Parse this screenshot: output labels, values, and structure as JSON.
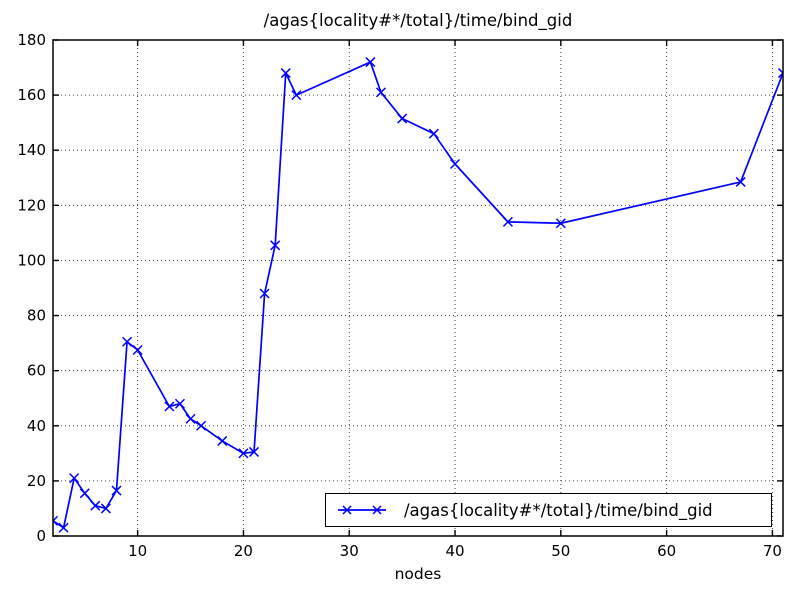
{
  "chart_data": {
    "type": "line",
    "title": "/agas{locality#*/total}/time/bind_gid",
    "xlabel": "nodes",
    "ylabel": "",
    "xlim": [
      2,
      71
    ],
    "ylim": [
      0,
      180
    ],
    "xticks": [
      10,
      20,
      30,
      40,
      50,
      60,
      70
    ],
    "yticks": [
      0,
      20,
      40,
      60,
      80,
      100,
      120,
      140,
      160,
      180
    ],
    "grid": true,
    "grid_style": "dotted",
    "legend_position": "lower right",
    "series": [
      {
        "name": "/agas{locality#*/total}/time/bind_gid",
        "color": "#0000ff",
        "marker": "x",
        "x": [
          2,
          3,
          4,
          5,
          6,
          7,
          8,
          9,
          10,
          13,
          14,
          15,
          16,
          18,
          20,
          21,
          22,
          23,
          24,
          25,
          32,
          33,
          35,
          38,
          40,
          45,
          50,
          67,
          71
        ],
        "y": [
          5.5,
          3,
          21,
          15.5,
          11,
          10,
          16.5,
          70.5,
          67.5,
          47,
          48,
          42.5,
          40,
          34.5,
          30,
          30.5,
          88,
          105.5,
          168,
          160,
          172,
          161,
          151.5,
          146,
          135,
          114,
          113.5,
          128.5,
          168
        ]
      }
    ],
    "colors": {
      "line": "#0000ff",
      "axis": "#000000",
      "grid": "#444444",
      "background": "#ffffff"
    }
  }
}
